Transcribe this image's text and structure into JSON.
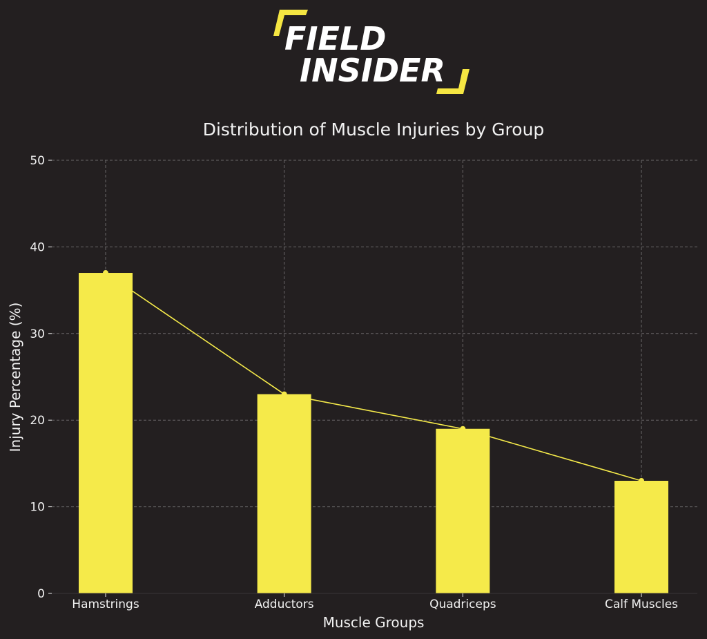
{
  "logo": {
    "line1": "FIELD",
    "line2": "INSIDER"
  },
  "colors": {
    "background": "#231f20",
    "bar": "#f5ea4a",
    "line": "#f5ea4a",
    "text": "#f2f2f2",
    "grid": "#6a6768",
    "logo_accent": "#f5e642"
  },
  "chart_data": {
    "type": "bar",
    "title": "Distribution of Muscle Injuries by Group",
    "xlabel": "Muscle Groups",
    "ylabel": "Injury Percentage (%)",
    "categories": [
      "Hamstrings",
      "Adductors",
      "Quadriceps",
      "Calf Muscles"
    ],
    "values": [
      37,
      23,
      19,
      13
    ],
    "overlay_line": true,
    "ylim": [
      0,
      50
    ],
    "yticks": [
      "0",
      "10",
      "20",
      "30",
      "40",
      "50"
    ],
    "grid": true,
    "legend": "none"
  }
}
